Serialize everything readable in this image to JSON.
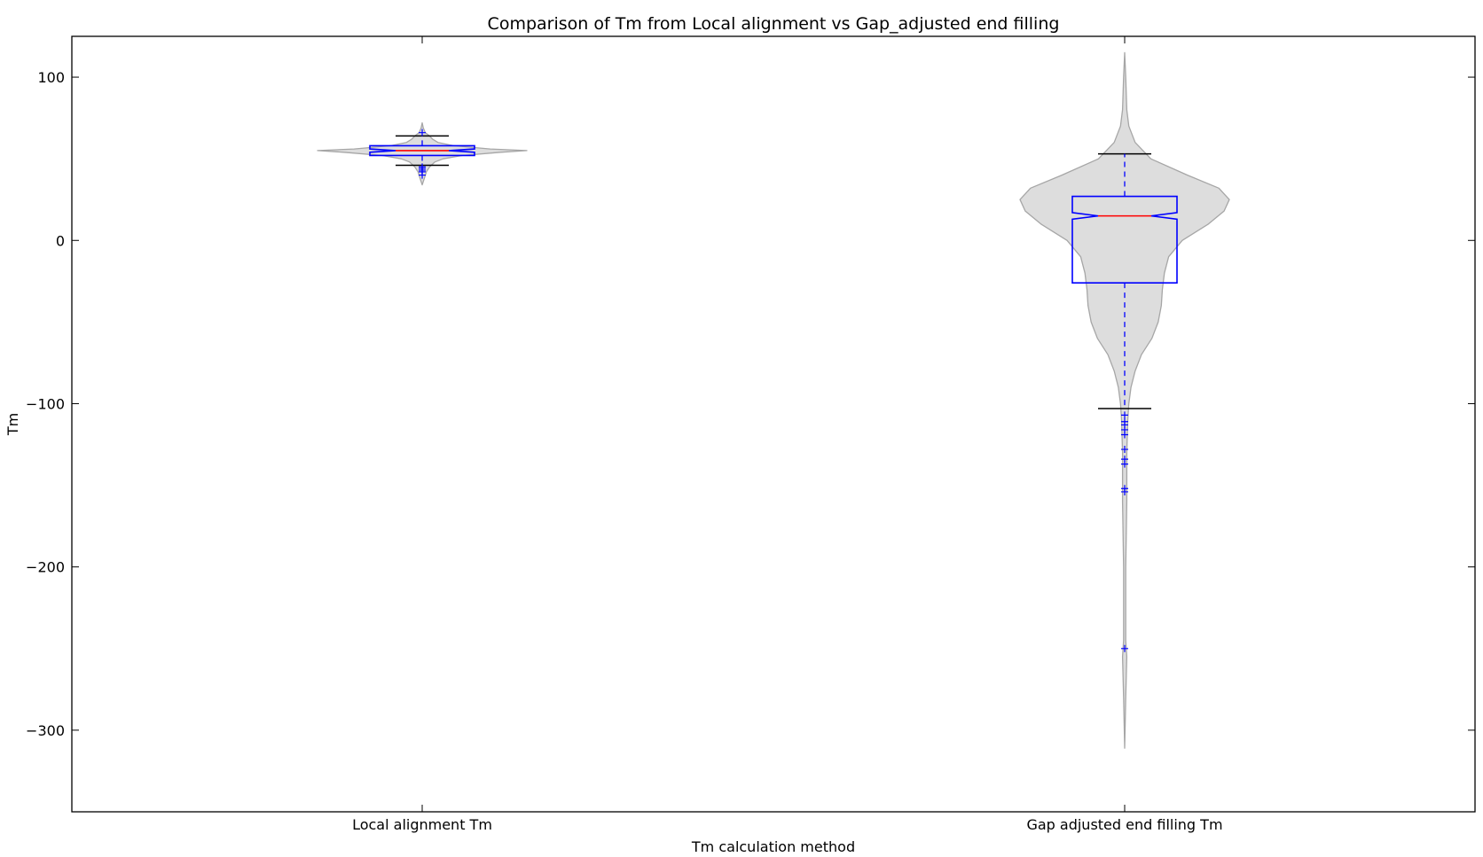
{
  "chart_data": {
    "type": "violin_box",
    "title": "Comparison of Tm from Local alignment vs Gap_adjusted end filling",
    "xlabel": "Tm calculation method",
    "ylabel": "Tm",
    "ylim": [
      -350,
      125
    ],
    "yticks": [
      100,
      0,
      -100,
      -200,
      -300
    ],
    "ytick_labels": [
      "100",
      "0",
      "−100",
      "−200",
      "−300"
    ],
    "categories": [
      "Local alignment Tm",
      "Gap adjusted end filling Tm"
    ],
    "grid": false,
    "colors": {
      "violin_fill": "#dddddd",
      "violin_edge": "#a6a6a6",
      "box": "#0000ff",
      "median": "#ff0000",
      "extremes": "#000000"
    },
    "series": [
      {
        "name": "Local alignment Tm",
        "violin_extent": [
          34,
          72
        ],
        "violin_density": [
          [
            34,
            0.0
          ],
          [
            38,
            0.02
          ],
          [
            42,
            0.04
          ],
          [
            45,
            0.07
          ],
          [
            48,
            0.12
          ],
          [
            50,
            0.2
          ],
          [
            52,
            0.38
          ],
          [
            54,
            0.75
          ],
          [
            55,
            1.0
          ],
          [
            56,
            0.65
          ],
          [
            58,
            0.3
          ],
          [
            60,
            0.15
          ],
          [
            62,
            0.1
          ],
          [
            64,
            0.07
          ],
          [
            66,
            0.03
          ],
          [
            69,
            0.01
          ],
          [
            72,
            0.0
          ]
        ],
        "box": {
          "q1": 52,
          "median": 55,
          "q3": 58,
          "notch_low": 54,
          "notch_high": 56,
          "whisker_low": 46,
          "whisker_high": 64
        },
        "extremes": [
          46,
          64
        ],
        "outliers": [
          45,
          44,
          43,
          42,
          40,
          66
        ]
      },
      {
        "name": "Gap adjusted end filling Tm",
        "violin_extent": [
          -311,
          115
        ],
        "violin_density": [
          [
            -311,
            0.0
          ],
          [
            -280,
            0.01
          ],
          [
            -255,
            0.02
          ],
          [
            -245,
            0.01
          ],
          [
            -200,
            0.01
          ],
          [
            -160,
            0.02
          ],
          [
            -130,
            0.02
          ],
          [
            -110,
            0.03
          ],
          [
            -100,
            0.04
          ],
          [
            -90,
            0.06
          ],
          [
            -80,
            0.1
          ],
          [
            -70,
            0.16
          ],
          [
            -60,
            0.26
          ],
          [
            -50,
            0.32
          ],
          [
            -40,
            0.35
          ],
          [
            -30,
            0.36
          ],
          [
            -20,
            0.38
          ],
          [
            -10,
            0.42
          ],
          [
            0,
            0.55
          ],
          [
            10,
            0.8
          ],
          [
            18,
            0.95
          ],
          [
            25,
            1.0
          ],
          [
            32,
            0.9
          ],
          [
            40,
            0.6
          ],
          [
            50,
            0.25
          ],
          [
            60,
            0.1
          ],
          [
            70,
            0.04
          ],
          [
            80,
            0.02
          ],
          [
            100,
            0.01
          ],
          [
            115,
            0.0
          ]
        ],
        "box": {
          "q1": -26,
          "median": 15,
          "q3": 27,
          "notch_low": 13,
          "notch_high": 17,
          "whisker_low": -103,
          "whisker_high": 53
        },
        "extremes": [
          -103,
          53
        ],
        "outliers": [
          -107,
          -111,
          -113,
          -116,
          -119,
          -128,
          -134,
          -137,
          -152,
          -154,
          -250
        ]
      }
    ]
  }
}
